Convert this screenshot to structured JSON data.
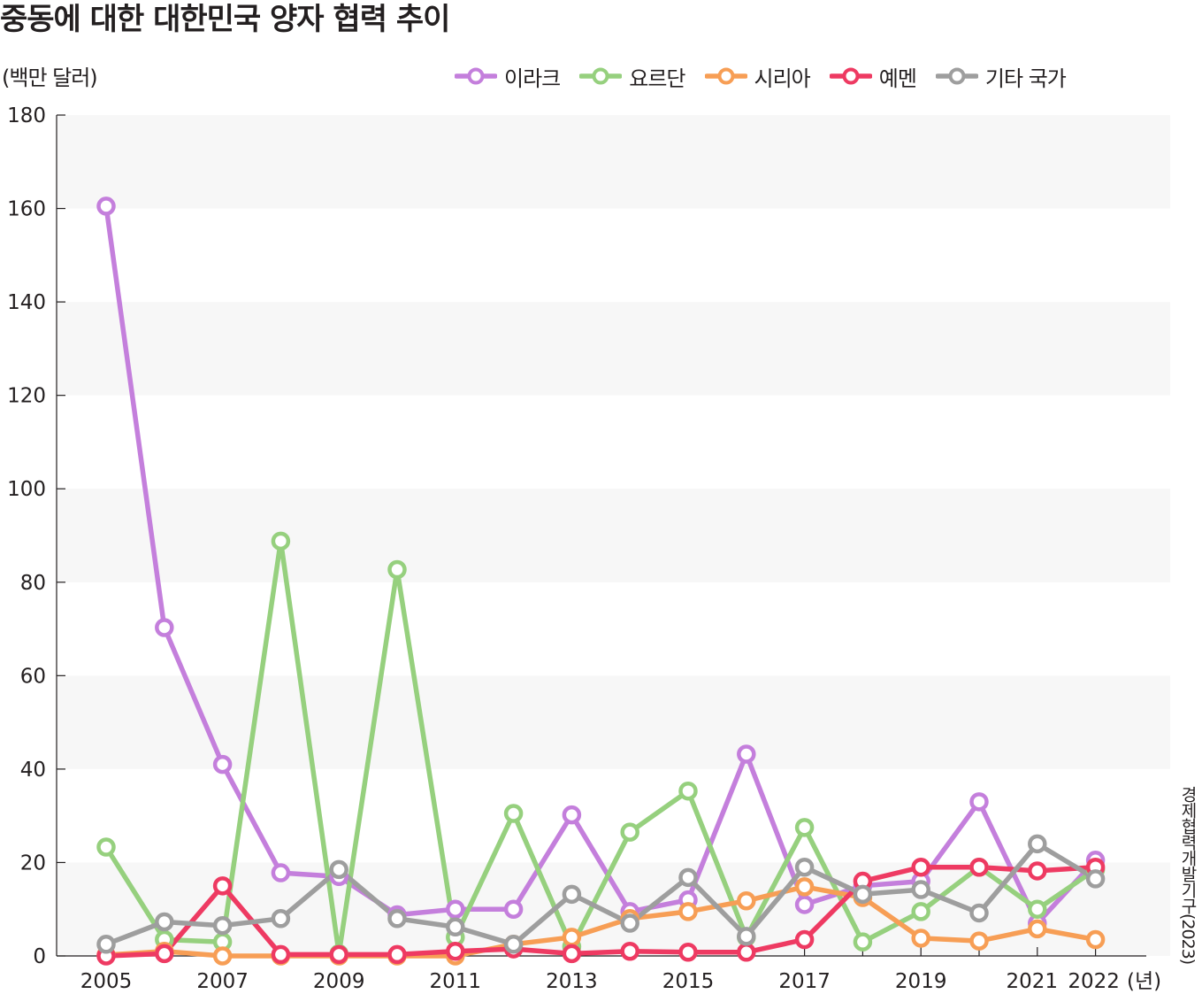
{
  "title": "중동에 대한 대한민국 양자 협력 추이",
  "source": "경제협력개발기구(2023)",
  "chart_data": {
    "type": "line",
    "title": "중동에 대한 대한민국 양자 협력 추이",
    "ylabel": "(백만 달러)",
    "xlabel": "(년)",
    "x": [
      2005,
      2006,
      2007,
      2008,
      2009,
      2010,
      2011,
      2012,
      2013,
      2014,
      2015,
      2016,
      2017,
      2018,
      2019,
      2020,
      2021,
      2022
    ],
    "x_tick_labels": [
      "2005",
      "2007",
      "2009",
      "2011",
      "2013",
      "2015",
      "2017",
      "2019",
      "2021",
      "2022"
    ],
    "y_ticks": [
      0,
      20,
      40,
      60,
      80,
      100,
      120,
      140,
      160,
      180
    ],
    "ylim": [
      0,
      180
    ],
    "grid": "alternating horizontal bands",
    "legend_position": "top-right",
    "series": [
      {
        "name": "이라크",
        "color": "#c47fdc",
        "values": [
          160.5,
          70.3,
          41.0,
          17.8,
          17.0,
          8.8,
          10.0,
          10.0,
          30.2,
          9.5,
          12.0,
          43.2,
          11.0,
          15.0,
          16.0,
          33.0,
          7.0,
          20.5
        ]
      },
      {
        "name": "요르단",
        "color": "#96d07e",
        "values": [
          23.3,
          3.5,
          3.0,
          88.8,
          0.5,
          82.7,
          4.0,
          30.5,
          2.0,
          26.5,
          35.3,
          4.0,
          27.5,
          3.0,
          9.5,
          19.0,
          10.0,
          18.5
        ]
      },
      {
        "name": "시리아",
        "color": "#f79e55",
        "values": [
          0.2,
          1.0,
          0.0,
          0.0,
          0.0,
          0.0,
          0.0,
          2.5,
          4.0,
          8.0,
          9.5,
          11.8,
          14.8,
          12.5,
          3.8,
          3.2,
          5.8,
          3.5
        ]
      },
      {
        "name": "예멘",
        "color": "#ee3a62",
        "values": [
          0.0,
          0.5,
          15.0,
          0.3,
          0.3,
          0.3,
          1.0,
          1.5,
          0.5,
          1.0,
          0.8,
          0.8,
          3.5,
          16.0,
          19.0,
          19.0,
          18.2,
          19.0
        ]
      },
      {
        "name": "기타 국가",
        "color": "#9e9e9e",
        "values": [
          2.5,
          7.3,
          6.5,
          8.0,
          18.5,
          8.0,
          6.2,
          2.5,
          13.2,
          7.0,
          16.8,
          4.2,
          19.0,
          13.2,
          14.2,
          9.2,
          24.0,
          16.5
        ]
      }
    ]
  }
}
